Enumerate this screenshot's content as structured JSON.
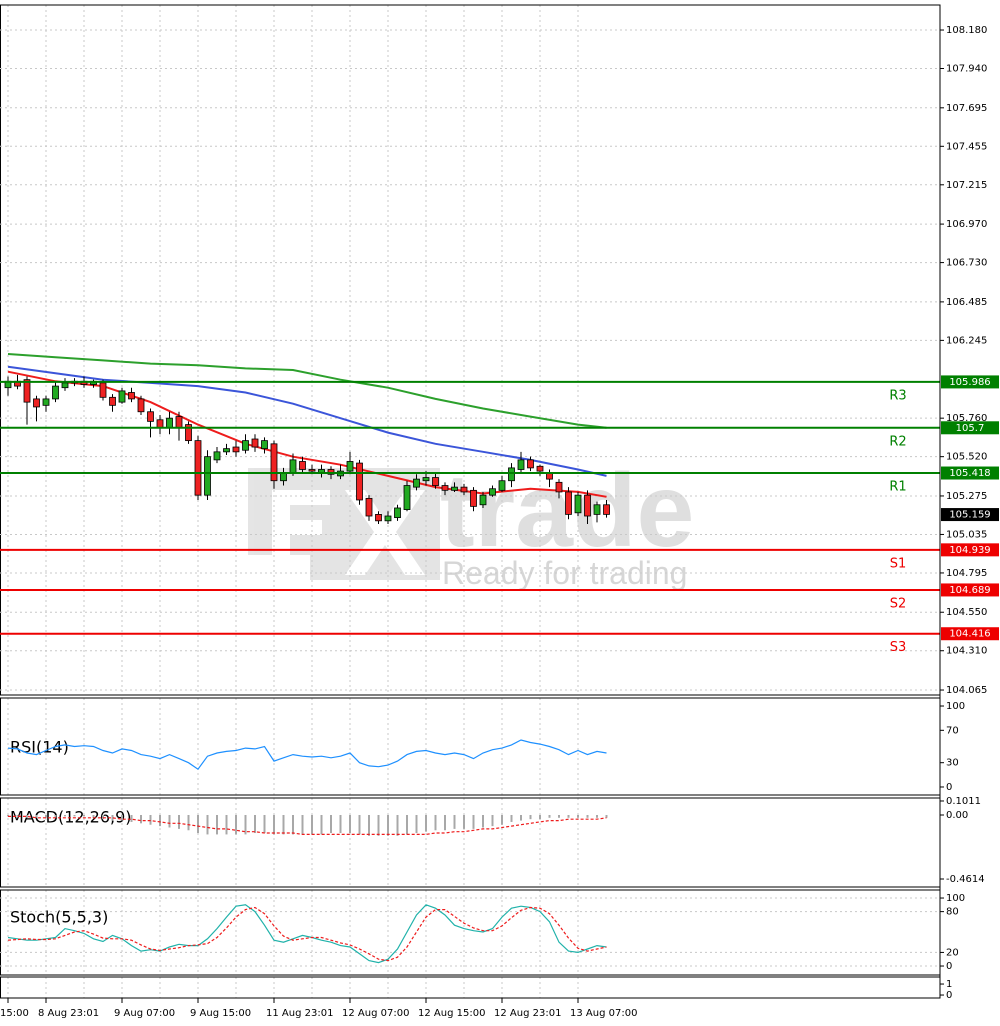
{
  "chart_data": [
    {
      "type": "candlestick",
      "categories": [
        "15:00",
        null,
        null,
        null,
        "8 Aug 23:01",
        null,
        null,
        null,
        null,
        null,
        null,
        null,
        "9 Aug 07:00",
        null,
        null,
        null,
        null,
        null,
        null,
        null,
        "9 Aug 15:00",
        null,
        null,
        null,
        null,
        null,
        null,
        null,
        "11 Aug 23:01",
        null,
        null,
        null,
        null,
        null,
        null,
        null,
        "12 Aug 07:00",
        null,
        null,
        null,
        null,
        null,
        null,
        null,
        "12 Aug 15:00",
        null,
        null,
        null,
        null,
        null,
        null,
        null,
        "12 Aug 23:01",
        null,
        null,
        null,
        null,
        null,
        null,
        null,
        "13 Aug 07:00",
        null,
        null,
        null
      ],
      "open": [
        105.95,
        105.99,
        106.0,
        105.88,
        105.84,
        105.88,
        105.95,
        105.98,
        105.99,
        105.97,
        105.98,
        105.89,
        105.86,
        105.92,
        105.88,
        105.8,
        105.75,
        105.7,
        105.77,
        105.72,
        105.62,
        105.28,
        105.5,
        105.55,
        105.58,
        105.56,
        105.63,
        105.57,
        105.6,
        105.37,
        105.42,
        105.49,
        105.44,
        105.42,
        105.44,
        105.4,
        105.43,
        105.48,
        105.26,
        105.16,
        105.12,
        105.14,
        105.19,
        105.33,
        105.37,
        105.39,
        105.34,
        105.31,
        105.33,
        105.31,
        105.22,
        105.28,
        105.31,
        105.37,
        105.44,
        105.5,
        105.46,
        105.42,
        105.36,
        105.3,
        105.17,
        105.28,
        105.16,
        105.22
      ],
      "high": [
        106.02,
        106.03,
        106.02,
        105.9,
        105.9,
        105.99,
        106.01,
        106.01,
        106.02,
        106.0,
        106.0,
        105.91,
        105.95,
        105.95,
        105.9,
        105.82,
        105.78,
        105.8,
        105.8,
        105.74,
        105.65,
        105.56,
        105.58,
        105.6,
        105.62,
        105.66,
        105.66,
        105.64,
        105.62,
        105.45,
        105.54,
        105.52,
        105.47,
        105.47,
        105.46,
        105.47,
        105.55,
        105.5,
        105.28,
        105.18,
        105.18,
        105.22,
        105.37,
        105.41,
        105.43,
        105.42,
        105.36,
        105.36,
        105.35,
        105.33,
        105.3,
        105.34,
        105.4,
        105.48,
        105.55,
        105.52,
        105.47,
        105.44,
        105.38,
        105.33,
        105.3,
        105.31,
        105.24,
        105.25
      ],
      "low": [
        105.9,
        105.94,
        105.72,
        105.74,
        105.8,
        105.86,
        105.93,
        105.96,
        105.95,
        105.95,
        105.87,
        105.8,
        105.85,
        105.86,
        105.78,
        105.64,
        105.66,
        105.66,
        105.62,
        105.6,
        105.25,
        105.25,
        105.48,
        105.53,
        105.52,
        105.54,
        105.55,
        105.54,
        105.32,
        105.34,
        105.4,
        105.42,
        105.41,
        105.39,
        105.38,
        105.38,
        105.41,
        105.22,
        105.12,
        105.1,
        105.1,
        105.12,
        105.18,
        105.31,
        105.34,
        105.32,
        105.28,
        105.3,
        105.28,
        105.18,
        105.2,
        105.27,
        105.3,
        105.33,
        105.42,
        105.43,
        105.4,
        105.33,
        105.26,
        105.13,
        105.15,
        105.1,
        105.11,
        105.14
      ],
      "close": [
        105.99,
        105.96,
        105.86,
        105.83,
        105.88,
        105.96,
        105.98,
        105.99,
        105.97,
        105.99,
        105.89,
        105.84,
        105.93,
        105.88,
        105.8,
        105.74,
        105.7,
        105.76,
        105.7,
        105.62,
        105.28,
        105.52,
        105.55,
        105.57,
        105.55,
        105.62,
        105.58,
        105.62,
        105.37,
        105.42,
        105.5,
        105.44,
        105.43,
        105.44,
        105.41,
        105.43,
        105.49,
        105.25,
        105.15,
        105.12,
        105.15,
        105.2,
        105.34,
        105.38,
        105.39,
        105.34,
        105.31,
        105.33,
        105.3,
        105.21,
        105.28,
        105.32,
        105.37,
        105.45,
        105.5,
        105.45,
        105.43,
        105.38,
        105.3,
        105.16,
        105.28,
        105.15,
        105.22,
        105.16
      ],
      "up_color": "#22aa22",
      "down_color": "#ee2222",
      "lines": [
        {
          "color": "#2ca02c",
          "x": [
            0,
            5,
            10,
            15,
            20,
            25,
            30,
            35,
            40,
            45,
            50,
            55,
            60,
            63
          ],
          "values": [
            106.16,
            106.14,
            106.12,
            106.1,
            106.09,
            106.07,
            106.06,
            106.0,
            105.95,
            105.88,
            105.82,
            105.77,
            105.72,
            105.7
          ]
        },
        {
          "color": "#3b55d9",
          "x": [
            0,
            5,
            10,
            15,
            20,
            25,
            30,
            35,
            40,
            45,
            50,
            55,
            60,
            63
          ],
          "values": [
            106.08,
            106.04,
            106.0,
            105.98,
            105.96,
            105.92,
            105.85,
            105.76,
            105.67,
            105.6,
            105.55,
            105.5,
            105.44,
            105.4
          ]
        },
        {
          "color": "#ee1c1c",
          "x": [
            0,
            5,
            10,
            15,
            20,
            25,
            30,
            35,
            40,
            45,
            50,
            55,
            60,
            63
          ],
          "values": [
            106.05,
            105.99,
            105.96,
            105.86,
            105.72,
            105.6,
            105.52,
            105.47,
            105.4,
            105.33,
            105.29,
            105.32,
            105.3,
            105.27
          ]
        }
      ],
      "levels": [
        {
          "label": "R3",
          "value": 105.986,
          "color": "#008000"
        },
        {
          "label": "R2",
          "value": 105.7,
          "color": "#008000"
        },
        {
          "label": "R1",
          "value": 105.418,
          "color": "#008000"
        },
        {
          "label": "S1",
          "value": 104.939,
          "color": "#ee0000"
        },
        {
          "label": "S2",
          "value": 104.689,
          "color": "#ee0000"
        },
        {
          "label": "S3",
          "value": 104.416,
          "color": "#ee0000"
        }
      ],
      "last_price": 105.159,
      "ylim": [
        104.034,
        108.336
      ],
      "yticks": [
        {
          "value": 108.18,
          "label": "108.180"
        },
        {
          "value": 107.94,
          "label": "107.940"
        },
        107.695,
        107.455,
        107.215,
        {
          "value": 106.97,
          "label": "106.970"
        },
        {
          "value": 106.73,
          "label": "106.730"
        },
        106.485,
        106.245,
        {
          "value": 105.76,
          "label": "105.760"
        },
        {
          "value": 105.52,
          "label": "105.520"
        },
        105.275,
        105.035,
        104.795,
        {
          "value": 104.55,
          "label": "104.550"
        },
        {
          "value": 104.31,
          "label": "104.310"
        },
        104.065
      ],
      "grid": true,
      "watermark": {
        "text": "trade",
        "tagline": "Ready for trading"
      }
    },
    {
      "type": "line",
      "title": "RSI(14)",
      "series": [
        {
          "color": "#1e90ff",
          "values": [
            48,
            47,
            42,
            40,
            45,
            50,
            52,
            50,
            51,
            50,
            45,
            42,
            47,
            45,
            40,
            38,
            35,
            40,
            35,
            30,
            22,
            38,
            42,
            44,
            45,
            48,
            47,
            50,
            32,
            36,
            40,
            38,
            37,
            38,
            36,
            38,
            42,
            30,
            26,
            25,
            27,
            32,
            40,
            44,
            45,
            42,
            40,
            42,
            40,
            35,
            42,
            46,
            48,
            52,
            58,
            55,
            53,
            50,
            46,
            40,
            45,
            40,
            44,
            42
          ]
        }
      ],
      "ylim": [
        -9.9,
        109.9
      ],
      "yticks": [
        100,
        70,
        30,
        0
      ],
      "grid": false
    },
    {
      "type": "bar",
      "title": "MACD(12,26,9)",
      "color": "#a8a8a8",
      "values": [
        -0.01,
        -0.01,
        -0.02,
        -0.02,
        -0.02,
        -0.02,
        -0.01,
        -0.01,
        -0.01,
        -0.02,
        -0.03,
        -0.04,
        -0.04,
        -0.05,
        -0.06,
        -0.07,
        -0.08,
        -0.09,
        -0.1,
        -0.11,
        -0.13,
        -0.14,
        -0.14,
        -0.14,
        -0.14,
        -0.14,
        -0.13,
        -0.13,
        -0.14,
        -0.14,
        -0.14,
        -0.14,
        -0.14,
        -0.14,
        -0.13,
        -0.13,
        -0.13,
        -0.14,
        -0.15,
        -0.15,
        -0.15,
        -0.15,
        -0.14,
        -0.13,
        -0.12,
        -0.11,
        -0.11,
        -0.1,
        -0.1,
        -0.1,
        -0.09,
        -0.08,
        -0.07,
        -0.05,
        -0.04,
        -0.03,
        -0.03,
        -0.02,
        -0.02,
        -0.02,
        -0.02,
        -0.02,
        -0.02,
        -0.02
      ],
      "series": [
        {
          "color": "#ee1c1c",
          "style": "dashed",
          "values": [
            -0.01,
            -0.01,
            -0.01,
            -0.02,
            -0.02,
            -0.02,
            -0.02,
            -0.02,
            -0.02,
            -0.02,
            -0.02,
            -0.02,
            -0.03,
            -0.03,
            -0.04,
            -0.04,
            -0.05,
            -0.06,
            -0.06,
            -0.07,
            -0.08,
            -0.09,
            -0.1,
            -0.1,
            -0.11,
            -0.12,
            -0.12,
            -0.13,
            -0.13,
            -0.13,
            -0.13,
            -0.14,
            -0.14,
            -0.14,
            -0.14,
            -0.14,
            -0.14,
            -0.14,
            -0.14,
            -0.14,
            -0.14,
            -0.14,
            -0.14,
            -0.14,
            -0.14,
            -0.13,
            -0.13,
            -0.12,
            -0.12,
            -0.11,
            -0.1,
            -0.1,
            -0.09,
            -0.08,
            -0.07,
            -0.06,
            -0.05,
            -0.04,
            -0.04,
            -0.03,
            -0.03,
            -0.03,
            -0.03,
            -0.02
          ]
        }
      ],
      "ylim": [
        -0.519,
        0.1226
      ],
      "yticks": [
        0.1011,
        {
          "value": 0,
          "label": "0.00"
        },
        -0.4614
      ],
      "grid": false
    },
    {
      "type": "line",
      "title": "Stoch(5,5,3)",
      "series": [
        {
          "color": "#20b2aa",
          "values": [
            42,
            40,
            38,
            38,
            40,
            42,
            55,
            52,
            48,
            40,
            36,
            45,
            40,
            30,
            22,
            24,
            22,
            28,
            32,
            30,
            30,
            40,
            55,
            72,
            88,
            90,
            80,
            60,
            38,
            35,
            40,
            45,
            42,
            38,
            35,
            30,
            28,
            18,
            8,
            5,
            10,
            25,
            50,
            75,
            90,
            85,
            75,
            60,
            55,
            52,
            50,
            55,
            72,
            85,
            88,
            86,
            80,
            65,
            35,
            22,
            20,
            25,
            30,
            28
          ]
        },
        {
          "color": "#ee1c1c",
          "style": "dashed",
          "values": [
            38,
            39,
            40,
            39,
            39,
            40,
            45,
            50,
            52,
            47,
            41,
            40,
            40,
            38,
            31,
            25,
            23,
            25,
            27,
            30,
            31,
            33,
            42,
            56,
            72,
            83,
            86,
            77,
            59,
            44,
            38,
            40,
            42,
            42,
            38,
            34,
            31,
            25,
            18,
            10,
            8,
            13,
            28,
            50,
            72,
            83,
            83,
            73,
            63,
            56,
            52,
            52,
            59,
            71,
            82,
            86,
            85,
            77,
            60,
            41,
            26,
            22,
            25,
            28
          ]
        }
      ],
      "ylim": [
        -13.2,
        111.8
      ],
      "yticks": [
        100,
        80,
        20,
        0
      ],
      "grid": true
    },
    {
      "type": "empty",
      "ylim": [
        -0.27,
        1.64
      ],
      "yticks": [
        1,
        0
      ],
      "grid": false
    }
  ]
}
